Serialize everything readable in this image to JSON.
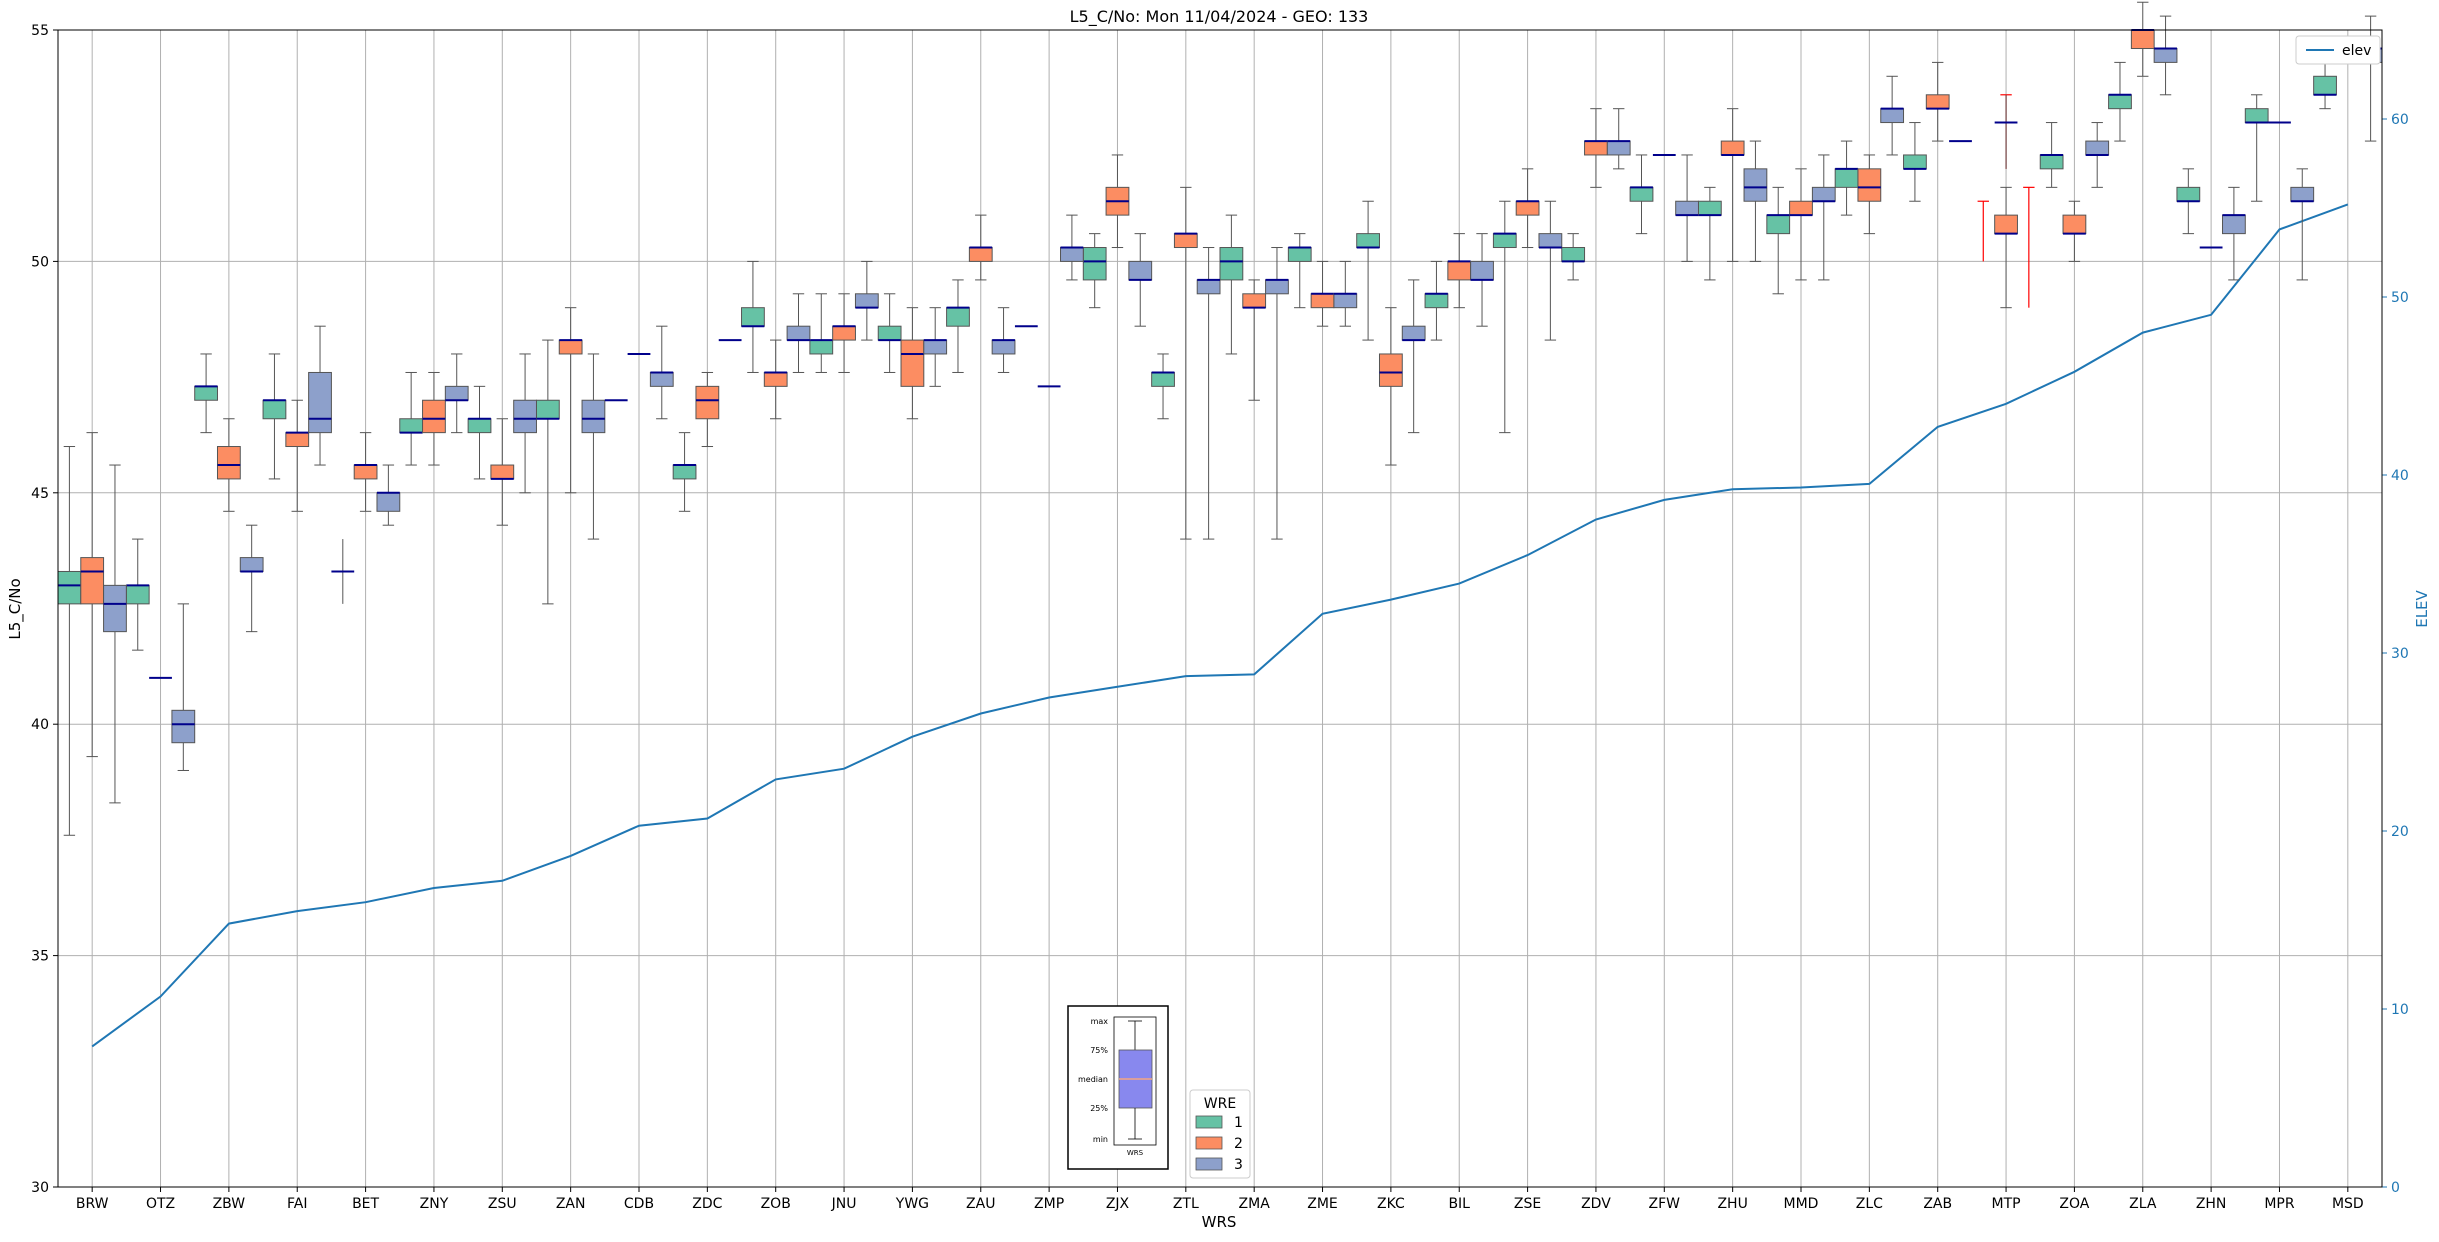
{
  "chart_data": {
    "type": "box",
    "title": "L5_C/No: Mon 11/04/2024 - GEO: 133",
    "xlabel": "WRS",
    "ylabel": "L5_C/No",
    "y2label": "ELEV",
    "ylim": [
      30,
      55
    ],
    "y2lim": [
      0,
      65
    ],
    "yticks": [
      30,
      35,
      40,
      45,
      50,
      55
    ],
    "y2ticks": [
      0,
      10,
      20,
      30,
      40,
      50,
      60
    ],
    "grid": true,
    "categories": [
      "BRW",
      "OTZ",
      "ZBW",
      "FAI",
      "BET",
      "ZNY",
      "ZSU",
      "ZAN",
      "CDB",
      "ZDC",
      "ZOB",
      "JNU",
      "YWG",
      "ZAU",
      "ZMP",
      "ZJX",
      "ZTL",
      "ZMA",
      "ZME",
      "ZKC",
      "BIL",
      "ZSE",
      "ZDV",
      "ZFW",
      "ZHU",
      "MMD",
      "ZLC",
      "ZAB",
      "MTP",
      "ZOA",
      "ZLA",
      "ZHN",
      "MPR",
      "MSD"
    ],
    "colors": {
      "1": "#66c2a5",
      "2": "#fc8d62",
      "3": "#8da0cb",
      "elev": "#1f77b4",
      "median": "#00008b",
      "axis2": "#1f77b4",
      "grid": "#b0b0b0",
      "outlier_whisker": "#ff0000"
    },
    "legend_wre": {
      "title": "WRE",
      "entries": [
        "1",
        "2",
        "3"
      ],
      "placement": "lower-center"
    },
    "legend_elev": {
      "entries": [
        "elev"
      ],
      "placement": "top-right"
    },
    "key_box": {
      "labels": [
        "max",
        "75%",
        "median",
        "25%",
        "min"
      ],
      "caption": "WRS"
    },
    "series": [
      {
        "name": "1",
        "boxes": [
          [
            37.6,
            42.6,
            43.0,
            43.3,
            46.0
          ],
          [
            41.6,
            42.6,
            43.0,
            43.0,
            44.0
          ],
          [
            46.3,
            47.0,
            47.3,
            47.3,
            48.0
          ],
          [
            45.3,
            46.6,
            47.0,
            47.0,
            48.0
          ],
          null,
          [
            45.6,
            46.3,
            46.3,
            46.6,
            47.6
          ],
          [
            45.3,
            46.3,
            46.6,
            46.6,
            47.3
          ],
          [
            42.6,
            46.6,
            46.6,
            47.0,
            48.3
          ],
          null,
          [
            44.6,
            45.3,
            45.6,
            45.6,
            46.3
          ],
          [
            47.6,
            48.6,
            48.6,
            49.0,
            50.0
          ],
          [
            47.6,
            48.0,
            48.3,
            48.3,
            49.3
          ],
          [
            47.6,
            48.3,
            48.3,
            48.6,
            49.3
          ],
          [
            47.6,
            48.6,
            49.0,
            49.0,
            49.6
          ],
          null,
          [
            49.0,
            49.6,
            50.0,
            50.3,
            50.6
          ],
          [
            46.6,
            47.3,
            47.6,
            47.6,
            48.0
          ],
          [
            48.0,
            49.6,
            50.0,
            50.3,
            51.0
          ],
          [
            49.0,
            50.0,
            50.3,
            50.3,
            50.6
          ],
          [
            48.3,
            50.3,
            50.3,
            50.6,
            51.3
          ],
          [
            48.3,
            49.0,
            49.3,
            49.3,
            50.0
          ],
          [
            46.3,
            50.3,
            50.6,
            50.6,
            51.3
          ],
          [
            49.6,
            50.0,
            50.0,
            50.3,
            50.6
          ],
          [
            50.6,
            51.3,
            51.6,
            51.6,
            52.3
          ],
          [
            49.6,
            51.0,
            51.0,
            51.3,
            51.6
          ],
          [
            49.3,
            50.6,
            51.0,
            51.0,
            51.6
          ],
          [
            51.0,
            51.6,
            52.0,
            52.0,
            52.6
          ],
          [
            51.3,
            52.0,
            52.0,
            52.3,
            53.0
          ],
          null,
          [
            51.6,
            52.0,
            52.3,
            52.3,
            53.0
          ],
          [
            52.6,
            53.3,
            53.6,
            53.6,
            54.3
          ],
          [
            50.6,
            51.3,
            51.3,
            51.6,
            52.0
          ],
          [
            51.3,
            53.0,
            53.0,
            53.3,
            53.6
          ],
          [
            53.3,
            53.6,
            53.6,
            54.0,
            54.3
          ]
        ]
      },
      {
        "name": "2",
        "boxes": [
          [
            39.3,
            42.6,
            43.3,
            43.6,
            46.3
          ],
          null,
          [
            44.6,
            45.3,
            45.6,
            46.0,
            46.6
          ],
          [
            44.6,
            46.0,
            46.3,
            46.3,
            47.0
          ],
          [
            44.6,
            45.3,
            45.6,
            45.6,
            46.3
          ],
          [
            45.6,
            46.3,
            46.6,
            47.0,
            47.6
          ],
          [
            44.3,
            45.3,
            45.3,
            45.6,
            46.6
          ],
          [
            45.0,
            48.0,
            48.3,
            48.3,
            49.0
          ],
          null,
          [
            46.0,
            46.6,
            47.0,
            47.3,
            47.6
          ],
          [
            46.6,
            47.3,
            47.6,
            47.6,
            48.3
          ],
          [
            47.6,
            48.3,
            48.6,
            48.6,
            49.3
          ],
          [
            46.6,
            47.3,
            48.0,
            48.3,
            49.0
          ],
          [
            49.6,
            50.0,
            50.3,
            50.3,
            51.0
          ],
          null,
          [
            50.3,
            51.0,
            51.3,
            51.6,
            52.3
          ],
          [
            44.0,
            50.3,
            50.6,
            50.6,
            51.6
          ],
          [
            47.0,
            49.0,
            49.0,
            49.3,
            49.6
          ],
          [
            48.6,
            49.0,
            49.3,
            49.3,
            50.0
          ],
          [
            45.6,
            47.3,
            47.6,
            48.0,
            49.0
          ],
          [
            49.0,
            49.6,
            50.0,
            50.0,
            50.6
          ],
          [
            50.3,
            51.0,
            51.3,
            51.3,
            52.0
          ],
          [
            51.6,
            52.3,
            52.6,
            52.6,
            53.3
          ],
          null,
          [
            50.0,
            52.3,
            52.3,
            52.6,
            53.3
          ],
          [
            49.6,
            51.0,
            51.0,
            51.3,
            52.0
          ],
          [
            50.6,
            51.3,
            51.6,
            52.0,
            52.3
          ],
          [
            52.6,
            53.3,
            53.3,
            53.6,
            54.3
          ],
          [
            49.0,
            50.6,
            50.6,
            51.0,
            51.6
          ],
          [
            50.0,
            50.6,
            50.6,
            51.0,
            51.3
          ],
          [
            54.0,
            54.6,
            55.0,
            55.0,
            55.6
          ],
          null,
          null,
          null
        ]
      },
      {
        "name": "3",
        "boxes": [
          [
            38.3,
            42.0,
            42.6,
            43.0,
            45.6
          ],
          [
            39.0,
            39.6,
            40.0,
            40.3,
            42.6
          ],
          [
            42.0,
            43.3,
            43.3,
            43.6,
            44.3
          ],
          [
            45.6,
            46.3,
            46.6,
            47.6,
            48.6
          ],
          [
            44.3,
            44.6,
            45.0,
            45.0,
            45.6
          ],
          [
            46.3,
            47.0,
            47.0,
            47.3,
            48.0
          ],
          [
            45.0,
            46.3,
            46.6,
            47.0,
            48.0
          ],
          [
            44.0,
            46.3,
            46.6,
            47.0,
            48.0
          ],
          [
            46.6,
            47.3,
            47.6,
            47.6,
            48.6
          ],
          null,
          [
            47.6,
            48.3,
            48.3,
            48.6,
            49.3
          ],
          [
            48.3,
            49.0,
            49.0,
            49.3,
            50.0
          ],
          [
            47.3,
            48.0,
            48.3,
            48.3,
            49.0
          ],
          [
            47.6,
            48.0,
            48.3,
            48.3,
            49.0
          ],
          [
            49.6,
            50.0,
            50.3,
            50.3,
            51.0
          ],
          [
            48.6,
            49.6,
            49.6,
            50.0,
            50.6
          ],
          [
            44.0,
            49.3,
            49.6,
            49.6,
            50.3
          ],
          [
            44.0,
            49.3,
            49.6,
            49.6,
            50.3
          ],
          [
            48.6,
            49.0,
            49.3,
            49.3,
            50.0
          ],
          [
            46.3,
            48.3,
            48.3,
            48.6,
            49.6
          ],
          [
            48.6,
            49.6,
            49.6,
            50.0,
            50.6
          ],
          [
            48.3,
            50.3,
            50.3,
            50.6,
            51.3
          ],
          [
            52.0,
            52.3,
            52.6,
            52.6,
            53.3
          ],
          [
            50.0,
            51.0,
            51.0,
            51.3,
            52.3
          ],
          [
            50.0,
            51.3,
            51.6,
            52.0,
            52.6
          ],
          [
            49.6,
            51.3,
            51.3,
            51.6,
            52.3
          ],
          [
            52.3,
            53.0,
            53.3,
            53.3,
            54.0
          ],
          null,
          null,
          [
            51.6,
            52.3,
            52.3,
            52.6,
            53.0
          ],
          [
            53.6,
            54.3,
            54.6,
            54.6,
            55.3
          ],
          [
            49.6,
            50.6,
            51.0,
            51.0,
            51.6
          ],
          [
            49.6,
            51.3,
            51.3,
            51.6,
            52.0
          ],
          [
            52.6,
            54.3,
            54.6,
            54.6,
            55.3
          ]
        ]
      }
    ],
    "single_medians": [
      {
        "x": "OTZ",
        "wre": "2",
        "value": 41.0
      },
      {
        "x": "BET",
        "wre": "1",
        "value": 43.3,
        "whisker": [
          42.6,
          44.0
        ]
      },
      {
        "x": "CDB",
        "wre": "1",
        "value": 47.0
      },
      {
        "x": "CDB",
        "wre": "2",
        "value": 48.0
      },
      {
        "x": "ZDC",
        "wre": "3",
        "value": 48.3
      },
      {
        "x": "ZMP",
        "wre": "1",
        "value": 48.6
      },
      {
        "x": "ZMP",
        "wre": "2",
        "value": 47.3
      },
      {
        "x": "ZFW",
        "wre": "2",
        "value": 52.3
      },
      {
        "x": "ZAB",
        "wre": "3",
        "value": 52.6
      },
      {
        "x": "MTP",
        "wre": "2",
        "value": 53.0,
        "whisker": [
          52.0,
          53.6
        ]
      },
      {
        "x": "ZHN",
        "wre": "2",
        "value": 50.3
      },
      {
        "x": "MPR",
        "wre": "2",
        "value": 53.0
      }
    ],
    "red_whiskers": [
      {
        "x": "MTP",
        "wre": "2",
        "range": [
          52.0,
          53.6
        ]
      },
      {
        "x": "MTP",
        "wre": "3",
        "range": [
          49.0,
          51.6
        ]
      },
      {
        "x": "MTP",
        "wre": "1",
        "range": [
          50.0,
          51.3
        ]
      }
    ],
    "elev": {
      "name": "elev",
      "values": [
        7.9,
        10.7,
        14.8,
        15.5,
        16.0,
        16.8,
        17.2,
        18.6,
        20.3,
        20.7,
        22.9,
        23.5,
        25.3,
        26.6,
        27.5,
        28.1,
        28.7,
        28.8,
        32.2,
        33.0,
        33.9,
        35.5,
        37.5,
        38.6,
        39.2,
        39.3,
        39.5,
        42.7,
        44.0,
        45.8,
        48.0,
        49.0,
        53.8,
        55.2
      ]
    }
  }
}
